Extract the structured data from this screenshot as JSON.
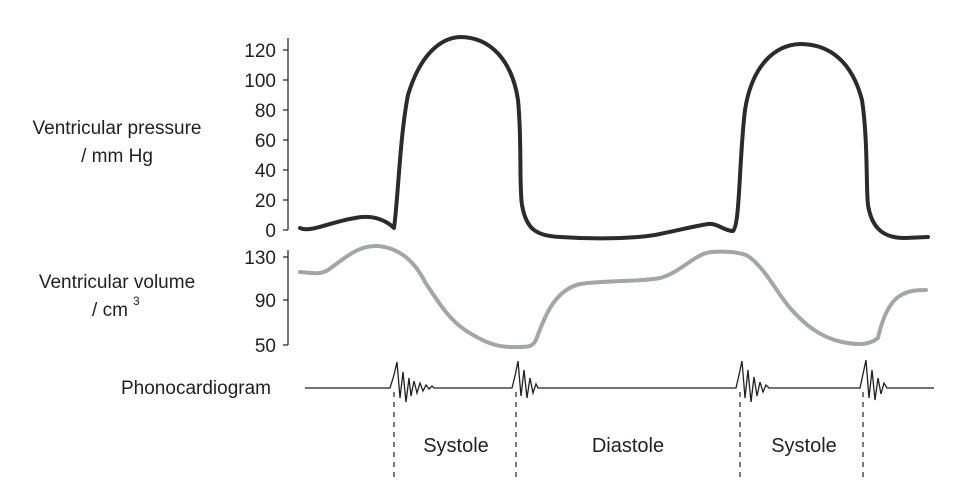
{
  "labels": {
    "pressure_line1": "Ventricular pressure",
    "pressure_line2": "/ mm Hg",
    "volume_line1": "Ventricular volume",
    "volume_line2": "/ cm",
    "volume_superscript": "3",
    "phonocardiogram": "Phonocardiogram"
  },
  "phases": [
    "Systole",
    "Diastole",
    "Systole"
  ],
  "colors": {
    "pressure_curve": "#2b2b2b",
    "volume_curve": "#a3a5a7",
    "text": "#231f20"
  },
  "chart_data": {
    "type": "line",
    "pressure": {
      "ylim": [
        0,
        120
      ],
      "ticks": [
        "0",
        "20",
        "40",
        "60",
        "80",
        "100",
        "120"
      ]
    },
    "volume": {
      "ylim": [
        50,
        130
      ],
      "ticks": [
        "50",
        "90",
        "130"
      ]
    }
  }
}
